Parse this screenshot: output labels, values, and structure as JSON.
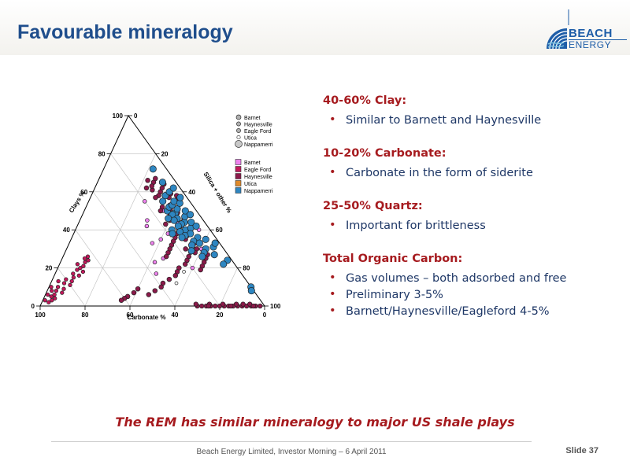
{
  "slide": {
    "title": "Favourable mineralogy",
    "tagline": "The REM has similar mineralogy to major US shale plays",
    "footer": "Beach Energy Limited, Investor Morning – 6 April 2011",
    "slide_number": "Slide 37"
  },
  "logo": {
    "line1": "BEACH",
    "line2": "ENERGY",
    "color": "#1f5ea8"
  },
  "bullets": [
    {
      "heading": "40-60% Clay:",
      "items": [
        "Similar to Barnett and Haynesville"
      ]
    },
    {
      "heading": "10-20% Carbonate:",
      "items": [
        "Carbonate in the form of siderite"
      ]
    },
    {
      "heading": "25-50% Quartz:",
      "items": [
        "Important for brittleness"
      ]
    },
    {
      "heading": "Total Organic Carbon:",
      "items": [
        "Gas volumes – both adsorbed and free",
        "Preliminary 3-5%",
        "Barnett/Haynesville/Eagleford 4-5%"
      ]
    }
  ],
  "colors": {
    "heading": "#a61b1f",
    "text": "#1e3766",
    "title": "#1f4e8c"
  },
  "chart_data": {
    "type": "scatter",
    "subtype": "ternary",
    "axes": {
      "clay": {
        "label": "Clays %",
        "ticks": [
          "0",
          "20",
          "40",
          "60",
          "80",
          "100"
        ]
      },
      "carbonate": {
        "label": "Carbonate %",
        "ticks": [
          "100",
          "80",
          "60",
          "40",
          "20",
          "0"
        ]
      },
      "silica": {
        "label": "Silica + other %",
        "ticks": [
          "0",
          "20",
          "40",
          "60",
          "80",
          "100"
        ]
      }
    },
    "grid": true,
    "legend_groups": [
      {
        "shape": "circle",
        "entries": [
          {
            "name": "Barnet",
            "color": "#b0b0b0",
            "size": 3
          },
          {
            "name": "Haynesville",
            "color": "#b0b0b0",
            "size": 2.6
          },
          {
            "name": "Eagle Ford",
            "color": "#b0b0b0",
            "size": 2.6
          },
          {
            "name": "Utica",
            "color": "#ffffff",
            "size": 2.2
          },
          {
            "name": "Nappamerri",
            "color": "#c8c8c8",
            "size": 4.5
          }
        ]
      },
      {
        "shape": "square",
        "entries": [
          {
            "name": "Barnet",
            "color": "#ee82ee"
          },
          {
            "name": "Eagle Ford",
            "color": "#c2185b"
          },
          {
            "name": "Haynesville",
            "color": "#8b1a4a"
          },
          {
            "name": "Utica",
            "color": "#e08a2a"
          },
          {
            "name": "Nappamerri",
            "color": "#2e86c1"
          }
        ]
      }
    ],
    "series": [
      {
        "name": "Barnet",
        "color": "#ee82ee",
        "size": 2.4,
        "points": [
          [
            30,
            10,
            60
          ],
          [
            28,
            16,
            56
          ],
          [
            20,
            20,
            60
          ],
          [
            35,
            25,
            40
          ],
          [
            25,
            30,
            45
          ],
          [
            44,
            12,
            44
          ],
          [
            50,
            15,
            35
          ],
          [
            38,
            20,
            42
          ],
          [
            55,
            20,
            25
          ],
          [
            45,
            25,
            30
          ],
          [
            33,
            30,
            37
          ],
          [
            40,
            5,
            55
          ],
          [
            23,
            35,
            42
          ],
          [
            17,
            38,
            45
          ],
          [
            42,
            27,
            31
          ]
        ]
      },
      {
        "name": "Eagle Ford",
        "color": "#c2185b",
        "size": 2.3,
        "points": [
          [
            2,
            95,
            3
          ],
          [
            3,
            93,
            4
          ],
          [
            5,
            92,
            3
          ],
          [
            6,
            90,
            4
          ],
          [
            8,
            88,
            4
          ],
          [
            4,
            91,
            5
          ],
          [
            7,
            86,
            7
          ],
          [
            10,
            86,
            4
          ],
          [
            9,
            84,
            7
          ],
          [
            12,
            82,
            6
          ],
          [
            11,
            80,
            9
          ],
          [
            14,
            80,
            6
          ],
          [
            13,
            78,
            9
          ],
          [
            15,
            76,
            9
          ],
          [
            17,
            75,
            8
          ],
          [
            16,
            73,
            11
          ],
          [
            19,
            72,
            9
          ],
          [
            20,
            70,
            10
          ],
          [
            18,
            70,
            12
          ],
          [
            22,
            70,
            8
          ],
          [
            21,
            68,
            11
          ],
          [
            23,
            66,
            11
          ],
          [
            25,
            65,
            10
          ],
          [
            24,
            64,
            12
          ],
          [
            26,
            63,
            11
          ],
          [
            10,
            89,
            1
          ],
          [
            6,
            93,
            1
          ],
          [
            13,
            84,
            3
          ],
          [
            3,
            96,
            1
          ],
          [
            8,
            90,
            2
          ]
        ]
      },
      {
        "name": "Haynesville",
        "color": "#8b1a4a",
        "size": 2.8,
        "points": [
          [
            0,
            30,
            70
          ],
          [
            0,
            28,
            72
          ],
          [
            0,
            26,
            74
          ],
          [
            0,
            24,
            76
          ],
          [
            0,
            22,
            78
          ],
          [
            0,
            20,
            80
          ],
          [
            0,
            18,
            82
          ],
          [
            0,
            16,
            84
          ],
          [
            0,
            14,
            86
          ],
          [
            0,
            12,
            88
          ],
          [
            0,
            10,
            90
          ],
          [
            0,
            8,
            92
          ],
          [
            0,
            6,
            94
          ],
          [
            0,
            4,
            96
          ],
          [
            0,
            2,
            98
          ],
          [
            1,
            30,
            69
          ],
          [
            1,
            24,
            75
          ],
          [
            1,
            18,
            81
          ],
          [
            1,
            12,
            87
          ],
          [
            1,
            6,
            93
          ],
          [
            0,
            25,
            75
          ],
          [
            0,
            15,
            85
          ],
          [
            0,
            5,
            95
          ],
          [
            1,
            9,
            90
          ]
        ]
      },
      {
        "name": "Haynesville-upper",
        "legend": false,
        "color": "#8b1a4a",
        "size": 2.9,
        "points": [
          [
            60,
            10,
            30
          ],
          [
            62,
            8,
            30
          ],
          [
            58,
            12,
            30
          ],
          [
            64,
            6,
            30
          ],
          [
            57,
            8,
            35
          ],
          [
            55,
            12,
            33
          ],
          [
            53,
            10,
            37
          ],
          [
            65,
            10,
            25
          ],
          [
            61,
            13,
            26
          ],
          [
            56,
            5,
            39
          ],
          [
            52,
            14,
            34
          ],
          [
            67,
            8,
            25
          ],
          [
            59,
            6,
            35
          ],
          [
            63,
            12,
            25
          ],
          [
            54,
            8,
            38
          ],
          [
            51,
            11,
            38
          ],
          [
            66,
            12,
            22
          ],
          [
            48,
            13,
            39
          ],
          [
            62,
            15,
            23
          ],
          [
            57,
            14,
            29
          ],
          [
            58,
            4,
            38
          ],
          [
            49,
            9,
            42
          ],
          [
            50,
            16,
            34
          ],
          [
            47,
            11,
            42
          ],
          [
            45,
            15,
            40
          ],
          [
            43,
            18,
            39
          ],
          [
            46,
            8,
            46
          ],
          [
            44,
            10,
            46
          ],
          [
            42,
            12,
            46
          ],
          [
            40,
            14,
            46
          ],
          [
            38,
            16,
            46
          ],
          [
            36,
            18,
            46
          ],
          [
            41,
            8,
            51
          ],
          [
            39,
            10,
            51
          ],
          [
            37,
            12,
            51
          ],
          [
            35,
            14,
            51
          ],
          [
            34,
            20,
            46
          ],
          [
            32,
            22,
            46
          ],
          [
            35,
            9,
            56
          ],
          [
            33,
            11,
            56
          ],
          [
            30,
            17,
            53
          ],
          [
            30,
            12,
            58
          ],
          [
            28,
            14,
            58
          ],
          [
            26,
            18,
            56
          ],
          [
            24,
            20,
            56
          ],
          [
            22,
            22,
            56
          ],
          [
            20,
            26,
            54
          ],
          [
            18,
            28,
            54
          ],
          [
            16,
            30,
            54
          ],
          [
            14,
            34,
            52
          ],
          [
            27,
            9,
            64
          ],
          [
            25,
            11,
            64
          ],
          [
            23,
            13,
            64
          ],
          [
            21,
            15,
            64
          ],
          [
            19,
            17,
            64
          ],
          [
            12,
            38,
            50
          ],
          [
            10,
            40,
            50
          ],
          [
            30,
            24,
            46
          ],
          [
            28,
            26,
            46
          ],
          [
            26,
            28,
            46
          ],
          [
            8,
            44,
            48
          ],
          [
            6,
            48,
            46
          ],
          [
            9,
            51,
            40
          ],
          [
            7,
            54,
            39
          ],
          [
            5,
            58,
            37
          ],
          [
            4,
            60,
            36
          ],
          [
            3,
            62,
            35
          ]
        ]
      },
      {
        "name": "Utica",
        "color": "#ffffff",
        "size": 2.0,
        "points": [
          [
            31,
            13,
            56
          ],
          [
            29,
            15,
            56
          ],
          [
            18,
            25,
            57
          ],
          [
            12,
            32,
            56
          ]
        ]
      },
      {
        "name": "Nappamerri",
        "color": "#2e86c1",
        "size": 4.2,
        "points": [
          [
            49,
            10,
            41
          ],
          [
            48,
            12,
            40
          ],
          [
            46,
            11,
            43
          ],
          [
            51,
            8,
            41
          ],
          [
            50,
            13,
            37
          ],
          [
            45,
            13,
            42
          ],
          [
            44,
            9,
            47
          ],
          [
            47,
            7,
            46
          ],
          [
            52,
            11,
            37
          ],
          [
            43,
            11,
            46
          ],
          [
            42,
            13,
            45
          ],
          [
            40,
            11,
            49
          ],
          [
            41,
            8,
            51
          ],
          [
            53,
            9,
            38
          ],
          [
            39,
            14,
            47
          ],
          [
            55,
            7,
            38
          ],
          [
            46,
            15,
            39
          ],
          [
            38,
            10,
            52
          ],
          [
            37,
            13,
            50
          ],
          [
            44,
            6,
            50
          ],
          [
            50,
            5,
            45
          ],
          [
            48,
            4,
            48
          ],
          [
            36,
            8,
            56
          ],
          [
            34,
            11,
            55
          ],
          [
            35,
            5,
            60
          ],
          [
            33,
            9,
            58
          ],
          [
            32,
            13,
            55
          ],
          [
            30,
            8,
            62
          ],
          [
            28,
            10,
            62
          ],
          [
            55,
            12,
            33
          ],
          [
            58,
            9,
            33
          ],
          [
            40,
            17,
            43
          ],
          [
            42,
            5,
            53
          ],
          [
            54,
            5,
            41
          ],
          [
            38,
            18,
            44
          ],
          [
            60,
            6,
            34
          ],
          [
            57,
            3,
            40
          ],
          [
            31,
            4,
            65
          ],
          [
            29,
            15,
            56
          ],
          [
            27,
            6,
            67
          ],
          [
            26,
            12,
            62
          ],
          [
            36,
            15,
            49
          ],
          [
            33,
            2,
            65
          ],
          [
            24,
            2,
            74
          ],
          [
            22,
            5,
            73
          ],
          [
            72,
            6,
            22
          ],
          [
            62,
            3,
            35
          ],
          [
            65,
            6,
            29
          ],
          [
            10,
            0,
            90
          ],
          [
            8,
            1,
            91
          ]
        ]
      }
    ]
  }
}
